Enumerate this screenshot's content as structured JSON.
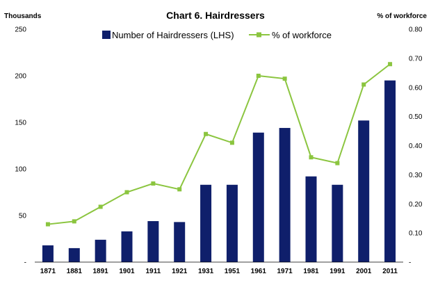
{
  "chart_data": {
    "type": "bar+line",
    "title": "Chart 6. Hairdressers",
    "y_left_label": "Thousands",
    "y_right_label": "% of workforce",
    "categories": [
      "1871",
      "1881",
      "1891",
      "1901",
      "1911",
      "1921",
      "1931",
      "1951",
      "1961",
      "1971",
      "1981",
      "1991",
      "2001",
      "2011"
    ],
    "series": [
      {
        "name": "Number of Hairdressers (LHS)",
        "type": "bar",
        "axis": "left",
        "color": "#0f1f6b",
        "values": [
          18,
          15,
          24,
          33,
          44,
          43,
          83,
          83,
          139,
          144,
          92,
          83,
          152,
          195
        ]
      },
      {
        "name": "% of workforce",
        "type": "line",
        "axis": "right",
        "color": "#8bc53f",
        "values": [
          0.13,
          0.14,
          0.19,
          0.24,
          0.27,
          0.25,
          0.44,
          0.41,
          0.64,
          0.63,
          0.36,
          0.34,
          0.61,
          0.68
        ]
      }
    ],
    "y_left_ticks": [
      "-",
      "50",
      "100",
      "150",
      "200",
      "250"
    ],
    "y_left_range": [
      0,
      250
    ],
    "y_right_ticks": [
      "-",
      "0.10",
      "0.20",
      "0.30",
      "0.40",
      "0.50",
      "0.60",
      "0.70",
      "0.80"
    ],
    "y_right_range": [
      0,
      0.8
    ],
    "legend_position": "top-center",
    "grid": false
  }
}
